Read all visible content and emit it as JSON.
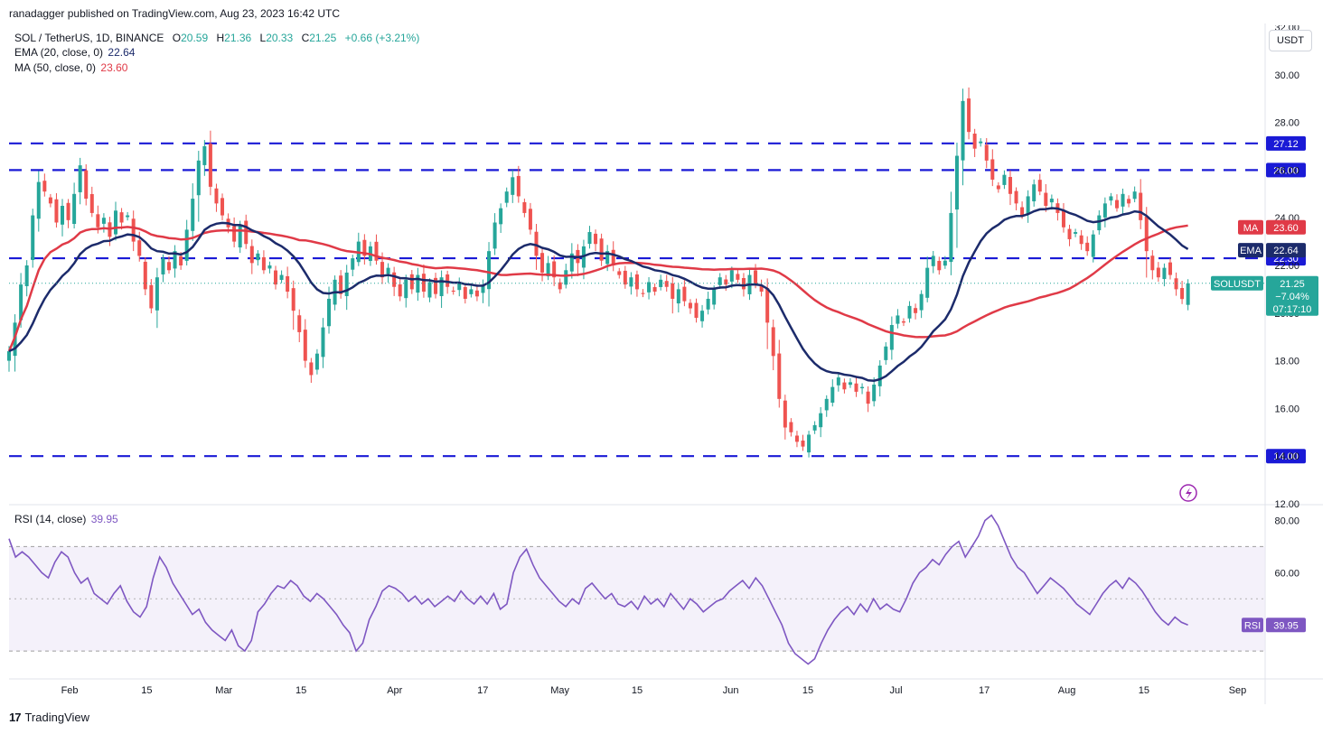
{
  "header": {
    "publisher": "ranadagger published on TradingView.com, Aug 23, 2023 16:42 UTC"
  },
  "legend": {
    "symbol": "SOL / TetherUS, 1D, BINANCE",
    "o_label": "O",
    "o": "20.59",
    "h_label": "H",
    "h": "21.36",
    "l_label": "L",
    "l": "20.33",
    "c_label": "C",
    "c": "21.25",
    "change": "+0.66 (+3.21%)",
    "ema_label": "EMA (20, close, 0)",
    "ema_value": "22.64",
    "ma_label": "MA (50, close, 0)",
    "ma_value": "23.60"
  },
  "currency_button": "USDT",
  "footer": {
    "logo_mark": "17",
    "logo_text": "TradingView"
  },
  "chart_data": {
    "type": "candlestick",
    "colors": {
      "up": "#26a69a",
      "down": "#ef5350",
      "ema": "#1c2b6b",
      "ma": "#e03a47",
      "levels": "#1a1ad6",
      "rsi": "#7e57c2",
      "rsi_band": "#ede7f6"
    },
    "price_axis": {
      "ticks": [
        "30.00",
        "28.00",
        "26.00",
        "24.00",
        "22.00",
        "20.00",
        "18.00",
        "16.00",
        "14.00",
        "12.00"
      ],
      "top_tick_partial": "32.00",
      "range": [
        12,
        32
      ]
    },
    "x_axis": {
      "labels": [
        {
          "label": "Feb",
          "date": "2023-02-01"
        },
        {
          "label": "15",
          "date": "2023-02-15"
        },
        {
          "label": "Mar",
          "date": "2023-03-01"
        },
        {
          "label": "15",
          "date": "2023-03-15"
        },
        {
          "label": "Apr",
          "date": "2023-04-01"
        },
        {
          "label": "17",
          "date": "2023-04-17"
        },
        {
          "label": "May",
          "date": "2023-05-01"
        },
        {
          "label": "15",
          "date": "2023-05-15"
        },
        {
          "label": "Jun",
          "date": "2023-06-01"
        },
        {
          "label": "15",
          "date": "2023-06-15"
        },
        {
          "label": "Jul",
          "date": "2023-07-01"
        },
        {
          "label": "17",
          "date": "2023-07-17"
        },
        {
          "label": "Aug",
          "date": "2023-08-01"
        },
        {
          "label": "15",
          "date": "2023-08-15"
        },
        {
          "label": "Sep",
          "date": "2023-09-01"
        }
      ],
      "range": [
        "2023-01-21",
        "2023-09-06"
      ]
    },
    "levels": [
      {
        "value": 27.12,
        "label": "27.12"
      },
      {
        "value": 26.0,
        "label": "26.00"
      },
      {
        "value": 22.3,
        "label": "22.30"
      },
      {
        "value": 14.0,
        "label": "14.00"
      }
    ],
    "badges": {
      "ma": {
        "name": "MA",
        "value": "23.60"
      },
      "ema": {
        "name": "EMA",
        "value": "22.64"
      },
      "last": {
        "name": "SOLUSDT",
        "value": "21.25",
        "change": "−7.04%",
        "countdown": "07:17:10"
      }
    },
    "candle_shape": [
      [
        0.42,
        0.18,
        0.62,
        0.05
      ],
      [
        -0.55,
        0.15,
        0.35,
        0.08
      ],
      [
        0.3,
        0.22,
        0.12,
        0.15
      ],
      [
        -0.2,
        0.1,
        0.3,
        0.05
      ],
      [
        0.65,
        0.08,
        0.1,
        0.05
      ],
      [
        -0.4,
        0.2,
        0.25,
        0.1
      ],
      [
        0.15,
        0.3,
        0.15,
        0.2
      ],
      [
        -0.7,
        0.05,
        0.1,
        0.05
      ],
      [
        0.5,
        0.12,
        0.08,
        0.2
      ],
      [
        -0.25,
        0.18,
        0.4,
        0.1
      ],
      [
        0.35,
        0.05,
        0.25,
        0.1
      ],
      [
        -0.45,
        0.25,
        0.05,
        0.15
      ],
      [
        0.2,
        0.15,
        0.3,
        0.3
      ],
      [
        -0.6,
        0.1,
        0.12,
        0.08
      ],
      [
        0.55,
        0.2,
        0.05,
        0.12
      ],
      [
        -0.15,
        0.35,
        0.2,
        0.1
      ]
    ],
    "ohlc_wave": {
      "first_date": "2023-01-21",
      "closes": [
        18.4,
        19.6,
        21.2,
        22.0,
        24.1,
        25.5,
        25.1,
        24.6,
        23.8,
        24.5,
        23.9,
        25.0,
        26.2,
        24.8,
        24.2,
        23.6,
        24.0,
        23.2,
        24.3,
        23.8,
        24.1,
        23.0,
        22.4,
        21.0,
        20.2,
        21.5,
        22.3,
        21.8,
        22.6,
        22.0,
        23.5,
        24.8,
        26.4,
        27.0,
        25.3,
        24.6,
        24.1,
        23.6,
        23.0,
        23.7,
        22.9,
        22.1,
        22.5,
        21.8,
        22.0,
        21.2,
        21.6,
        20.9,
        20.1,
        19.2,
        18.0,
        17.4,
        18.3,
        19.4,
        20.6,
        21.4,
        20.8,
        21.7,
        22.3,
        23.0,
        22.4,
        22.8,
        22.2,
        21.5,
        21.9,
        21.1,
        20.7,
        21.4,
        21.0,
        21.6,
        20.9,
        21.3,
        20.8,
        21.5,
        21.1,
        20.9,
        21.3,
        20.6,
        21.0,
        20.7,
        21.2,
        22.6,
        23.8,
        24.4,
        25.1,
        25.7,
        24.9,
        24.2,
        23.5,
        22.4,
        21.7,
        22.1,
        21.5,
        21.0,
        21.8,
        22.5,
        22.1,
        22.8,
        23.4,
        22.9,
        22.2,
        22.6,
        22.0,
        21.6,
        21.2,
        21.5,
        21.0,
        20.8,
        21.3,
        20.9,
        21.4,
        21.1,
        20.6,
        21.0,
        20.5,
        20.2,
        19.8,
        20.1,
        20.6,
        21.0,
        21.5,
        21.2,
        21.8,
        21.4,
        21.0,
        21.6,
        21.2,
        20.9,
        19.6,
        18.2,
        16.4,
        15.2,
        15.0,
        14.6,
        14.4,
        14.9,
        15.3,
        15.8,
        16.4,
        16.9,
        17.3,
        16.8,
        17.1,
        16.7,
        16.9,
        16.2,
        17.0,
        17.8,
        18.6,
        19.5,
        19.9,
        19.6,
        20.3,
        20.0,
        20.8,
        21.9,
        22.4,
        21.8,
        22.2,
        24.2,
        26.6,
        28.9,
        27.6,
        26.9,
        27.2,
        26.4,
        25.6,
        25.2,
        25.8,
        25.0,
        24.6,
        24.1,
        24.9,
        25.4,
        25.1,
        24.5,
        24.8,
        24.2,
        23.6,
        23.1,
        23.4,
        22.9,
        22.6,
        23.3,
        24.1,
        24.6,
        24.9,
        24.4,
        25.0,
        24.6,
        25.1,
        23.9,
        22.6,
        21.8,
        21.5,
        21.9,
        21.6,
        21.0,
        20.59,
        21.25
      ]
    },
    "rsi": {
      "label": "RSI (14, close)",
      "value": "39.95",
      "badge": "RSI",
      "ticks": [
        "80.00",
        "60.00"
      ],
      "range": [
        20,
        85
      ],
      "band": [
        30,
        70
      ],
      "mid": 50,
      "series": [
        73,
        66,
        68,
        66,
        63,
        60,
        58,
        64,
        68,
        66,
        60,
        56,
        58,
        52,
        50,
        48,
        52,
        55,
        49,
        45,
        43,
        47,
        58,
        66,
        62,
        56,
        52,
        48,
        44,
        46,
        41,
        38,
        36,
        34,
        38,
        32,
        30,
        34,
        45,
        48,
        52,
        55,
        54,
        57,
        55,
        51,
        49,
        52,
        50,
        47,
        44,
        40,
        37,
        30,
        33,
        42,
        47,
        53,
        55,
        54,
        52,
        49,
        51,
        48,
        50,
        47,
        49,
        51,
        49,
        53,
        50,
        48,
        51,
        48,
        52,
        46,
        48,
        60,
        66,
        69,
        63,
        58,
        55,
        52,
        49,
        47,
        50,
        48,
        54,
        56,
        53,
        50,
        52,
        48,
        47,
        49,
        46,
        51,
        48,
        50,
        47,
        52,
        49,
        46,
        50,
        48,
        45,
        47,
        49,
        50,
        53,
        55,
        57,
        54,
        58,
        55,
        50,
        45,
        40,
        33,
        29,
        27,
        25,
        27,
        33,
        38,
        42,
        45,
        47,
        44,
        48,
        45,
        50,
        46,
        48,
        46,
        45,
        50,
        56,
        60,
        62,
        65,
        63,
        67,
        70,
        72,
        66,
        70,
        74,
        80,
        82,
        78,
        72,
        66,
        62,
        60,
        56,
        52,
        55,
        58,
        56,
        54,
        51,
        48,
        46,
        44,
        48,
        52,
        55,
        57,
        54,
        58,
        56,
        53,
        49,
        45,
        42,
        40,
        43,
        41,
        39.95
      ]
    }
  }
}
